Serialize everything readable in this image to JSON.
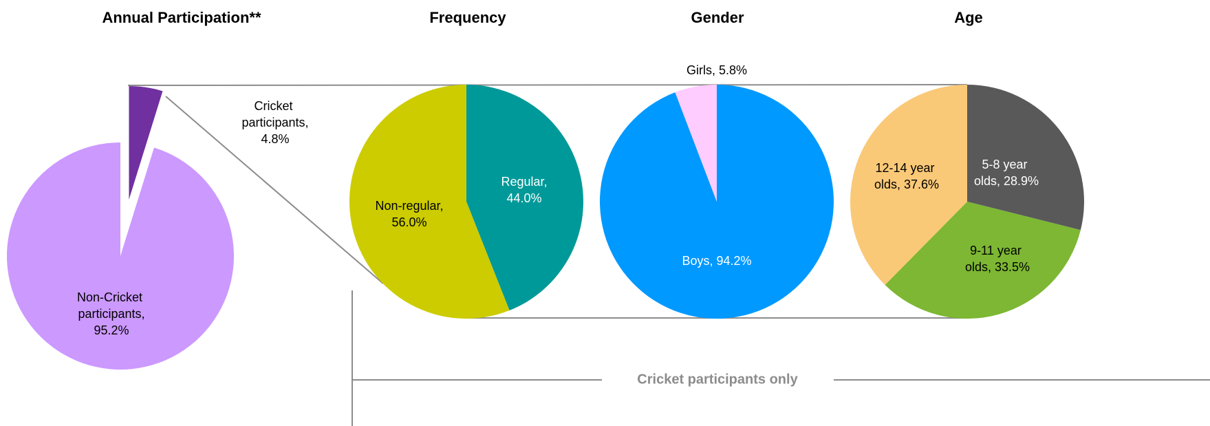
{
  "chart_data": [
    {
      "type": "pie",
      "title": "Annual Participation**",
      "categories": [
        "Cricket participants",
        "Non-Cricket participants"
      ],
      "values": [
        4.8,
        95.2
      ],
      "value_labels": [
        "4.8%",
        "95.2%"
      ],
      "colors": [
        "#7030a0",
        "#cc99ff"
      ]
    },
    {
      "type": "pie",
      "title": "Frequency",
      "categories": [
        "Regular",
        "Non-regular"
      ],
      "values": [
        44.0,
        56.0
      ],
      "value_labels": [
        "44.0%",
        "56.0%"
      ],
      "colors": [
        "#009999",
        "#cccc00"
      ]
    },
    {
      "type": "pie",
      "title": "Gender",
      "categories": [
        "Boys",
        "Girls"
      ],
      "values": [
        94.2,
        5.8
      ],
      "value_labels": [
        "94.2%",
        "5.8%"
      ],
      "colors": [
        "#0099ff",
        "#ffccff"
      ]
    },
    {
      "type": "pie",
      "title": "Age",
      "categories": [
        "5-8 year olds",
        "9-11 year olds",
        "12-14 year olds"
      ],
      "values": [
        28.9,
        33.5,
        37.6
      ],
      "value_labels": [
        "28.9%",
        "33.5%",
        "37.6%"
      ],
      "colors": [
        "#595959",
        "#7db733",
        "#fac978"
      ]
    }
  ],
  "annotation": "Cricket participants only"
}
